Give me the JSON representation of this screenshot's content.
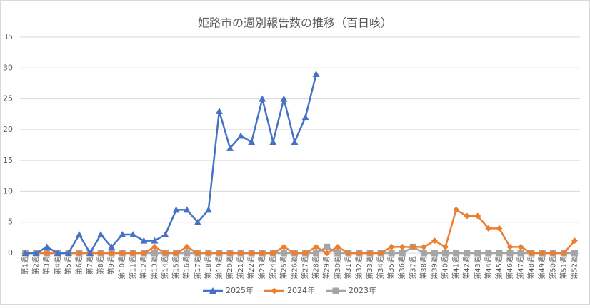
{
  "chart_data": {
    "type": "line",
    "title": "姫路市の週別報告数の推移（百日咳）",
    "categories": [
      "第1週",
      "第2週",
      "第3週",
      "第4週",
      "第5週",
      "第6週",
      "第7週",
      "第8週",
      "第9週",
      "第10週",
      "第11週",
      "第12週",
      "第13週",
      "第14週",
      "第15週",
      "第16週",
      "第17週",
      "第18週",
      "第19週",
      "第20週",
      "第21週",
      "第22週",
      "第23週",
      "第24週",
      "第25週",
      "第26週",
      "第27週",
      "第28週",
      "第29週",
      "第30週",
      "第31週",
      "第32週",
      "第33週",
      "第34週",
      "第35週",
      "第36週",
      "第37週",
      "第38週",
      "第39週",
      "第40週",
      "第41週",
      "第42週",
      "第43週",
      "第44週",
      "第45週",
      "第46週",
      "第47週",
      "第48週",
      "第49週",
      "第50週",
      "第51週",
      "第52週"
    ],
    "series": [
      {
        "name": "2025年",
        "color": "#4472c4",
        "values": [
          0,
          0,
          1,
          0,
          0,
          3,
          0,
          3,
          1,
          3,
          3,
          2,
          2,
          3,
          7,
          7,
          5,
          7,
          23,
          17,
          19,
          18,
          25,
          18,
          25,
          18,
          22,
          29,
          null,
          null,
          null,
          null,
          null,
          null,
          null,
          null,
          null,
          null,
          null,
          null,
          null,
          null,
          null,
          null,
          null,
          null,
          null,
          null,
          null,
          null,
          null,
          null
        ]
      },
      {
        "name": "2024年",
        "color": "#ed7d31",
        "values": [
          0,
          0,
          0,
          0,
          0,
          0,
          0,
          0,
          0,
          0,
          0,
          0,
          1,
          0,
          0,
          1,
          0,
          0,
          0,
          0,
          0,
          0,
          0,
          0,
          1,
          0,
          0,
          1,
          0,
          1,
          0,
          0,
          0,
          0,
          1,
          1,
          1,
          1,
          2,
          1,
          7,
          6,
          6,
          4,
          4,
          1,
          1,
          0,
          0,
          0,
          0,
          2
        ]
      },
      {
        "name": "2023年",
        "color": "#a5a5a5",
        "values": [
          0,
          0,
          0,
          0,
          0,
          0,
          0,
          0,
          0,
          0,
          0,
          0,
          0,
          0,
          0,
          0,
          0,
          0,
          0,
          0,
          0,
          0,
          0,
          0,
          0,
          0,
          0,
          0,
          1,
          0,
          0,
          0,
          0,
          0,
          0,
          0,
          1,
          0,
          0,
          0,
          0,
          0,
          0,
          0,
          0,
          0,
          0,
          0,
          0,
          0,
          0,
          0
        ]
      }
    ],
    "ylim": [
      0,
      35
    ],
    "yticks": [
      0,
      5,
      10,
      15,
      20,
      25,
      30,
      35
    ],
    "grid": true,
    "legend": "bottom"
  }
}
